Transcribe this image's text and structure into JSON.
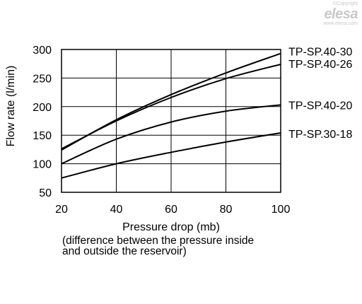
{
  "watermark": {
    "copyright": "©Copyright",
    "brand": "elesa",
    "url": "www.elesa.com"
  },
  "chart_data": {
    "type": "line",
    "xlabel": "Pressure drop (mb)",
    "xlabel_note": [
      "(difference between the pressure inside",
      "and outside the reservoir)"
    ],
    "ylabel": "Flow rate (l/min)",
    "xlim": [
      20,
      100
    ],
    "ylim": [
      50,
      300
    ],
    "xticks": [
      20,
      40,
      60,
      80,
      100
    ],
    "yticks": [
      50,
      100,
      150,
      200,
      250,
      300
    ],
    "grid": true,
    "legend": "series labels at right end of lines",
    "series": [
      {
        "name": "TP-SP.40-30",
        "x": [
          20,
          40,
          60,
          80,
          100
        ],
        "y": [
          124,
          177,
          221,
          259,
          293
        ]
      },
      {
        "name": "TP-SP.40-26",
        "x": [
          20,
          40,
          60,
          80,
          100
        ],
        "y": [
          126,
          175,
          216,
          249,
          274
        ]
      },
      {
        "name": "TP-SP.40-20",
        "x": [
          20,
          40,
          60,
          80,
          100
        ],
        "y": [
          100,
          143,
          173,
          192,
          203
        ]
      },
      {
        "name": "TP-SP.30-18",
        "x": [
          20,
          40,
          60,
          80,
          100
        ],
        "y": [
          75,
          100,
          120,
          138,
          154
        ]
      }
    ]
  }
}
